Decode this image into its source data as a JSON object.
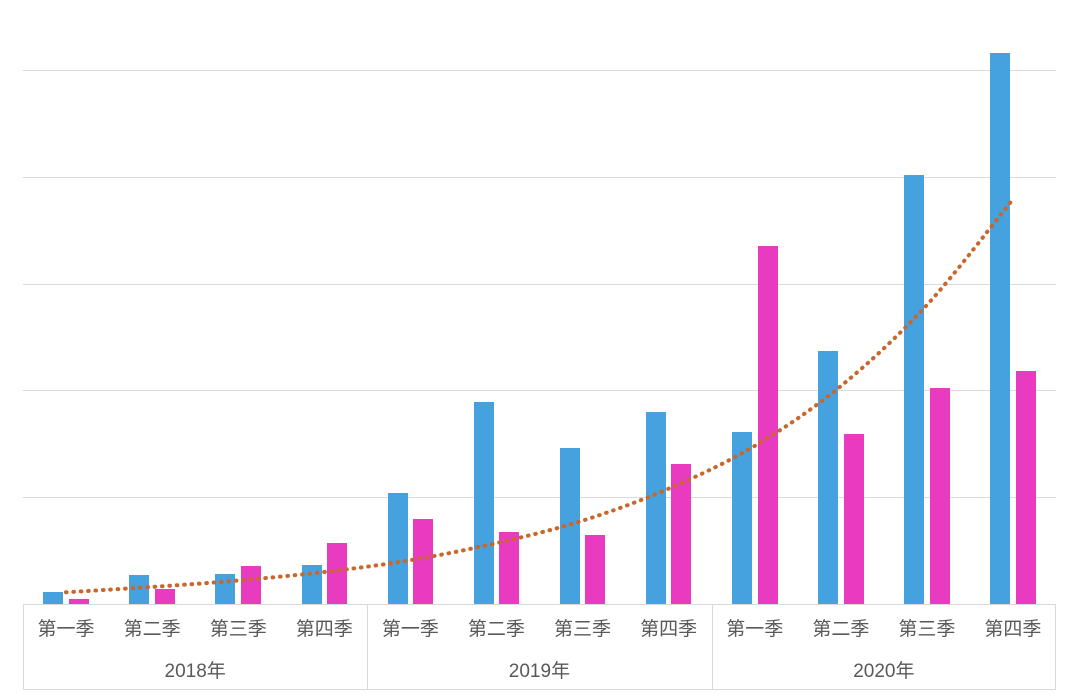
{
  "chart_data": {
    "type": "bar",
    "title": "",
    "legend": false,
    "grid": true,
    "gridline_values": [
      100,
      200,
      300,
      400,
      500
    ],
    "gridline_step": 100,
    "ylim": [
      0,
      565
    ],
    "x_groups": [
      {
        "year": "2018年",
        "quarters": [
          "第一季",
          "第二季",
          "第三季",
          "第四季"
        ]
      },
      {
        "year": "2019年",
        "quarters": [
          "第一季",
          "第二季",
          "第三季",
          "第四季"
        ]
      },
      {
        "year": "2020年",
        "quarters": [
          "第一季",
          "第二季",
          "第三季",
          "第四季"
        ]
      }
    ],
    "series": [
      {
        "name": "blue-bars",
        "type": "bar",
        "color": "#45a2de",
        "values": [
          11,
          27,
          28,
          37,
          104,
          189,
          146,
          180,
          161,
          237,
          402,
          516
        ]
      },
      {
        "name": "pink-bars",
        "type": "bar",
        "color": "#e93bc0",
        "values": [
          5,
          14,
          36,
          57,
          80,
          67,
          65,
          131,
          335,
          159,
          202,
          218
        ]
      },
      {
        "name": "trendline",
        "type": "dotted-line",
        "color": "#c9662b",
        "values": [
          11,
          16,
          22,
          30,
          41,
          57,
          78,
          108,
          148,
          204,
          280,
          379
        ]
      }
    ],
    "colors": {
      "grid": "#d9d9d9",
      "axis_border": "#d9d9d9",
      "axis_text": "#595959",
      "background": "#ffffff"
    }
  }
}
